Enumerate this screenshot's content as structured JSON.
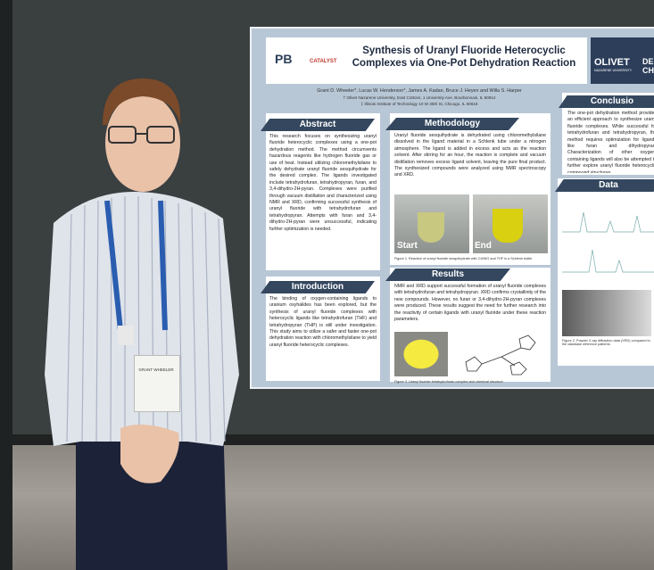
{
  "poster": {
    "logos": {
      "left": "PB",
      "middle": "CATALYST",
      "right": "OLIVET",
      "right_sub": "NAZARENE UNIVERSITY",
      "cut": "DE CH"
    },
    "title": "Synthesis of Uranyl Fluoride Heterocyclic Complexes via One-Pot Dehydration Reaction",
    "authors": "Grant D. Wheeler*, Lucas W. Henderson*, James A. Kadan, Bruce J. Heyen and Willa S. Harper",
    "affiliations": [
      "† Olivet Nazarene University, East Cottons, 1 University Ave, Bourbonnais, IL 60914",
      "‡ Illinois Institute of Technology 10 W 35th St, Chicago, IL 60616"
    ],
    "sections": {
      "abstract": {
        "heading": "Abstract",
        "text": "This research focuses on synthesizing uranyl fluoride heterocyclic complexes using a one-pot dehydration method. The method circumvents hazardous reagents like hydrogen fluoride gas or use of heat. Instead utilizing chloromethylsilane to safely dehydrate uranyl fluoride sesquihydrate for the desired complex. The ligands investigated include tetrahydrofuran, tetrahydropyran, furan, and 3,4-dihydro-2H-pyran. Complexes were purified through vacuum distillation and characterized using NMR and XRD, confirming successful synthesis of uranyl fluoride with tetrahydrofuran and tetrahydropyran. Attempts with furan and 3,4-dihydro-2H-pyran were unsuccessful, indicating further optimization is needed."
      },
      "methodology": {
        "heading": "Methodology",
        "text": "Uranyl fluoride sesquihydrate is dehydrated using chloromethylsilane dissolved in the ligand material in a Schlenk tube under a nitrogen atmosphere. The ligand is added in excess and acts as the reaction solvent. After stirring for an hour, the reaction is complete and vacuum distillation removes excess ligand solvent, leaving the pure final product. The synthesized compounds were analyzed using NMR spectroscopy and XRD.",
        "start": "Start",
        "end": "End",
        "caption": "Figure 1. Reaction of uranyl fluoride sesquihydrate with C4H8O and THF in a Schlenk bottle"
      },
      "introduction": {
        "heading": "Introduction",
        "text": "The binding of oxygen-containing ligands to uranium oxyhalides has been explored, but the synthesis of uranyl fluoride complexes with heterocyclic ligands like tetrahydrofuran (THF) and tetrahydropyran (THP) is still under investigation. This study aims to utilize a safer and faster one-pot dehydration reaction with chloromethylsilane to yield uranyl fluoride heterocyclic complexes."
      },
      "results": {
        "heading": "Results",
        "text": "NMR and XRD support successful formation of uranyl fluoride complexes with tetrahydrofuran and tetrahydropyran. XRD confirms crystallinity of the new compounds. However, no furan or 3,4-dihydro-2H-pyran complexes were produced. These results suggest the need for further research into the reactivity of certain ligands with uranyl fluoride under these reaction parameters.",
        "caption": "Figure 3. Uranyl fluoride tetrahydrofuran complex and chemical structure"
      },
      "conclusion": {
        "heading": "Conclusio",
        "text": "The one-pot dehydration method provides an efficient approach to synthesize uranyl fluoride complexes. While successful for tetrahydrofuran and tetrahydropyran, the method requires optimization for ligands like furan and dihydropyran. Characterization of other oxygen-containing ligands will also be attempted to further explore uranyl fluoride heterocyclic compound structures."
      },
      "data": {
        "heading": "Data",
        "caption": "Figure 2. Powder X-ray diffraction data (XRD) compared to the database reference patterns"
      }
    }
  },
  "badge": {
    "name": "GRANT WHEELER"
  }
}
